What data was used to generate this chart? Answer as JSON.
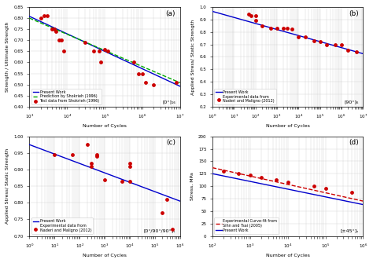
{
  "panel_a": {
    "title": "(a)",
    "xlabel": "Number of Cycles",
    "ylabel": "Strength / Ultimate Strength",
    "xlim": [
      1000,
      10000000
    ],
    "ylim": [
      0.4,
      0.85
    ],
    "label_corner": "[0°]₁₆",
    "scatter_x": [
      2000,
      2500,
      3000,
      4000,
      4500,
      5000,
      6000,
      7000,
      8000,
      30000,
      50000,
      70000,
      80000,
      100000,
      120000,
      600000,
      800000,
      1000000,
      1200000,
      2000000,
      8000000
    ],
    "scatter_y": [
      0.8,
      0.81,
      0.81,
      0.75,
      0.75,
      0.74,
      0.7,
      0.7,
      0.65,
      0.69,
      0.65,
      0.65,
      0.6,
      0.66,
      0.65,
      0.6,
      0.55,
      0.55,
      0.51,
      0.5,
      0.51
    ],
    "line1_x": [
      1000,
      10000000
    ],
    "line1_y": [
      0.808,
      0.492
    ],
    "line2_x": [
      1000,
      10000000
    ],
    "line2_y": [
      0.8,
      0.508
    ],
    "legend": [
      "Test data from Shokrieh (1996)",
      "Present Work",
      "Prediction by Shokrieh (1996)"
    ],
    "line1_color": "#0000cc",
    "line2_color": "#00aa00",
    "scatter_color": "#cc0000"
  },
  "panel_b": {
    "title": "(b)",
    "xlabel": "Number of Cycles",
    "ylabel": "Applied Stress/ Static Strength",
    "xlim": [
      1,
      10000000
    ],
    "ylim": [
      0.2,
      1.0
    ],
    "label_corner": "[90°]₆",
    "scatter_x": [
      50,
      60,
      100,
      100,
      200,
      500,
      1000,
      2000,
      3000,
      5000,
      10000,
      20000,
      50000,
      100000,
      200000,
      500000,
      1000000,
      2000000,
      5000000
    ],
    "scatter_y": [
      0.94,
      0.93,
      0.93,
      0.89,
      0.85,
      0.83,
      0.83,
      0.83,
      0.83,
      0.82,
      0.76,
      0.76,
      0.73,
      0.72,
      0.7,
      0.7,
      0.7,
      0.65,
      0.64
    ],
    "line1_x": [
      1,
      10000000
    ],
    "line1_y": [
      0.965,
      0.625
    ],
    "legend": [
      "Present Work",
      "Experimental data from\nNaderi and Maligno (2012)"
    ],
    "line1_color": "#0000cc",
    "scatter_color": "#cc0000"
  },
  "panel_c": {
    "title": "(c)",
    "xlabel": "Number of Cycles",
    "ylabel": "Applied Stress/ Static Strength",
    "xlim": [
      1,
      1000000
    ],
    "ylim": [
      0.7,
      1.0
    ],
    "label_corner": "[0°/90°/90°]ₛ",
    "scatter_x": [
      10,
      50,
      200,
      300,
      300,
      500,
      500,
      1000,
      5000,
      10000,
      10000,
      10000,
      200000,
      300000,
      500000
    ],
    "scatter_y": [
      0.945,
      0.945,
      0.975,
      0.92,
      0.91,
      0.945,
      0.94,
      0.87,
      0.865,
      0.865,
      0.92,
      0.91,
      0.77,
      0.81,
      0.72
    ],
    "line1_x": [
      1,
      1000000
    ],
    "line1_y": [
      0.975,
      0.805
    ],
    "legend": [
      "Present Work",
      "Experimental data from\nNaderi and Maligno (2012)"
    ],
    "line1_color": "#0000cc",
    "scatter_color": "#cc0000"
  },
  "panel_d": {
    "title": "(d)",
    "xlabel": "Number of Cycles",
    "ylabel": "Stress, MPa",
    "xlim": [
      100,
      1000000
    ],
    "ylim": [
      0,
      200
    ],
    "label_corner": "[±45°]ₛ",
    "scatter_x": [
      200,
      500,
      1000,
      2000,
      5000,
      10000,
      50000,
      100000,
      500000
    ],
    "scatter_y": [
      130,
      126,
      122,
      118,
      113,
      108,
      100,
      96,
      88
    ],
    "line1_x": [
      100,
      1000000
    ],
    "line1_y": [
      137,
      70
    ],
    "line2_x": [
      100,
      1000000
    ],
    "line2_y": [
      125,
      63
    ],
    "legend": [
      "Experimental Curve-fit from\nSihn and Tsai (2005)",
      "Present Work"
    ],
    "line1_color": "#cc0000",
    "line2_color": "#0000cc",
    "scatter_color": "#cc0000"
  }
}
